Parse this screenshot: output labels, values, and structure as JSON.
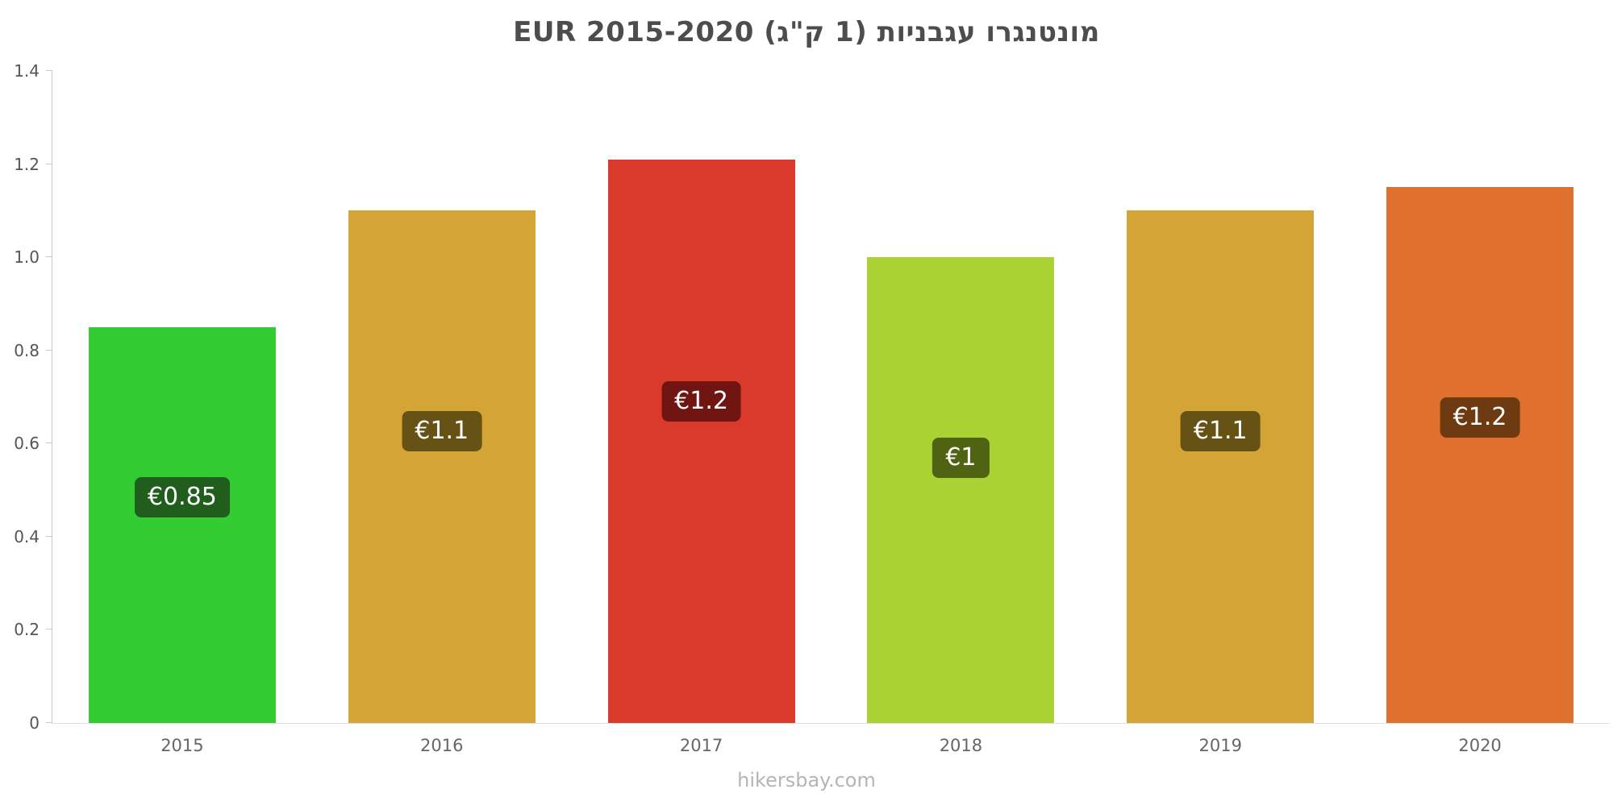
{
  "title": "מונטנגרו עגבניות (1 ק\"ג) EUR 2015-2020",
  "footer": "hikersbay.com",
  "chart_data": {
    "type": "bar",
    "title": "מונטנגרו עגבניות (1 ק\"ג) EUR 2015-2020",
    "categories": [
      "2015",
      "2016",
      "2017",
      "2018",
      "2019",
      "2020"
    ],
    "values": [
      0.85,
      1.1,
      1.21,
      1.0,
      1.1,
      1.15
    ],
    "value_labels": [
      "€0.85",
      "€1.1",
      "€1.2",
      "€1",
      "€1.1",
      "€1.2"
    ],
    "bar_colors": [
      "#33cc33",
      "#d4a437",
      "#d93a2c",
      "#a9d232",
      "#d4a437",
      "#e0702e"
    ],
    "label_bg_colors": [
      "#215e1d",
      "#665214",
      "#701511",
      "#506312",
      "#665214",
      "#6e3a11"
    ],
    "currency": "EUR",
    "xlabel": "",
    "ylabel": "",
    "ylim": [
      0,
      1.4
    ],
    "yticks": [
      0,
      0.2,
      0.4,
      0.6,
      0.8,
      1.0,
      1.2,
      1.4
    ],
    "ytick_labels": [
      "0",
      "0.2",
      "0.4",
      "0.6",
      "0.8",
      "1.0",
      "1.2",
      "1.4"
    ],
    "grid": false,
    "legend": false
  }
}
